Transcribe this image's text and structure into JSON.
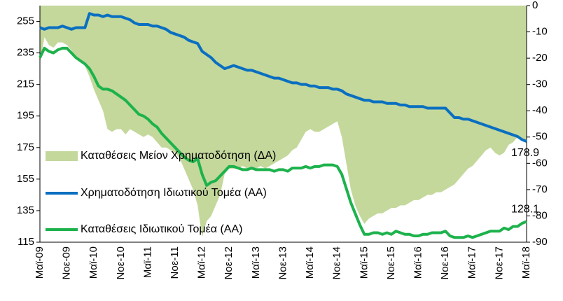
{
  "chart_data": {
    "type": "line",
    "categories": [
      "Μαϊ-09",
      null,
      null,
      null,
      null,
      null,
      "Νοε-09",
      null,
      null,
      null,
      null,
      null,
      "Μαϊ-10",
      null,
      null,
      null,
      null,
      null,
      "Νοε-10",
      null,
      null,
      null,
      null,
      null,
      "Μαϊ-11",
      null,
      null,
      null,
      null,
      null,
      "Νοε-11",
      null,
      null,
      null,
      null,
      null,
      "Μαϊ-12",
      null,
      null,
      null,
      null,
      null,
      "Νοε-12",
      null,
      null,
      null,
      null,
      null,
      "Μαϊ-13",
      null,
      null,
      null,
      null,
      null,
      "Νοε-13",
      null,
      null,
      null,
      null,
      null,
      "Μαϊ-14",
      null,
      null,
      null,
      null,
      null,
      "Νοε-14",
      null,
      null,
      null,
      null,
      null,
      "Μαϊ-15",
      null,
      null,
      null,
      null,
      null,
      "Νοε-15",
      null,
      null,
      null,
      null,
      null,
      "Μαϊ-16",
      null,
      null,
      null,
      null,
      null,
      "Νοε-16",
      null,
      null,
      null,
      null,
      null,
      "Μαϊ-17",
      null,
      null,
      null,
      null,
      null,
      "Νοε-17",
      null,
      null,
      null,
      null,
      null,
      "Μαϊ-18"
    ],
    "series": [
      {
        "name": "Καταθέσεις Μείον Χρηματοδότηση (ΔΑ)",
        "type": "area",
        "axis": "y2",
        "color": "#c4d89c",
        "values": [
          -22,
          -12,
          -15,
          -16,
          -14,
          -14,
          -15,
          -17,
          -20,
          -21,
          -23,
          -27,
          -32,
          -36,
          -40,
          -47,
          -48,
          -47,
          -47,
          -49,
          -47,
          -48,
          -49,
          -50,
          -49,
          -50,
          -52,
          -54,
          -54,
          -55,
          -56,
          -58,
          -62,
          -66,
          -70,
          -76,
          -88,
          -82,
          -80,
          -76,
          -72,
          -64,
          -62,
          -62,
          -62,
          -61,
          -62,
          -62,
          -62,
          -61,
          -62,
          -61,
          -60,
          -59,
          -58,
          -57,
          -55,
          -54,
          -51,
          -48,
          -47,
          -48,
          -48,
          -47,
          -46,
          -45,
          -44,
          -50,
          -60,
          -70,
          -76,
          -80,
          -83,
          -81,
          -80,
          -79,
          -79,
          -78,
          -77,
          -77,
          -76,
          -76,
          -75,
          -74,
          -74,
          -73,
          -72,
          -72,
          -71,
          -71,
          -70,
          -69,
          -68,
          -66,
          -64,
          -62,
          -61,
          -59,
          -57,
          -55,
          -54,
          -56,
          -57,
          -56,
          -53,
          -52,
          -50,
          -51,
          -52
        ]
      },
      {
        "name": "Χρηματοδότηση Ιδιωτικού Τομέα (ΑΑ)",
        "type": "line",
        "color": "#0a6fc0",
        "values": [
          251,
          250,
          251,
          251,
          251,
          252,
          251,
          250,
          251,
          251,
          251,
          260,
          259,
          259,
          258,
          259,
          258,
          258,
          258,
          257,
          256,
          254,
          253,
          253,
          253,
          252,
          252,
          251,
          250,
          248,
          247,
          246,
          245,
          243,
          242,
          241,
          236,
          234,
          232,
          229,
          227,
          225,
          226,
          227,
          226,
          225,
          224,
          224,
          223,
          222,
          221,
          220,
          219,
          219,
          218,
          217,
          216,
          216,
          215,
          215,
          214,
          214,
          213,
          213,
          213,
          212,
          212,
          211,
          209,
          208,
          207,
          206,
          205,
          205,
          204,
          204,
          204,
          203,
          203,
          203,
          202,
          202,
          201,
          201,
          201,
          201,
          200,
          200,
          200,
          200,
          200,
          197,
          194,
          194,
          193,
          193,
          192,
          191,
          190,
          189,
          188,
          187,
          186,
          185,
          184,
          183,
          182,
          180,
          178.9
        ]
      },
      {
        "name": "Καταθέσεις Ιδιωτικού Τομέα (ΑΑ)",
        "type": "line",
        "color": "#1db24c",
        "values": [
          232,
          238,
          236,
          235,
          237,
          238,
          238,
          235,
          232,
          230,
          228,
          225,
          220,
          214,
          212,
          212,
          211,
          209,
          207,
          205,
          202,
          199,
          196,
          195,
          193,
          190,
          188,
          184,
          181,
          178,
          175,
          172,
          169,
          167,
          166,
          168,
          158,
          151,
          153,
          154,
          157,
          160,
          163,
          163,
          162,
          161,
          161,
          162,
          161,
          161,
          161,
          161,
          160,
          161,
          161,
          160,
          162,
          162,
          162,
          163,
          162,
          163,
          163,
          164,
          164,
          164,
          163,
          158,
          149,
          140,
          133,
          126,
          120,
          120,
          121,
          121,
          120,
          121,
          120,
          122,
          121,
          120,
          120,
          119,
          119,
          120,
          120,
          121,
          121,
          121,
          122,
          119,
          118,
          118,
          118,
          119,
          118,
          119,
          120,
          121,
          122,
          122,
          122,
          124,
          123,
          125,
          125,
          127,
          128.1
        ]
      }
    ],
    "ylim": [
      115,
      265
    ],
    "yticks": [
      115,
      135,
      155,
      175,
      195,
      215,
      235,
      255
    ],
    "y2lim": [
      -90,
      0
    ],
    "y2ticks": [
      0,
      -10,
      -20,
      -30,
      -40,
      -50,
      -60,
      -70,
      -80,
      -90
    ],
    "grid": false,
    "legend": "left"
  }
}
